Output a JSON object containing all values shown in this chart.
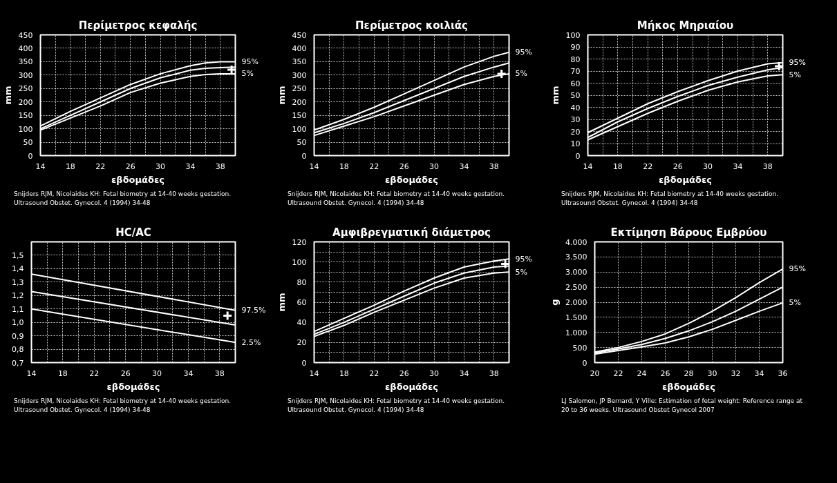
{
  "chart_data": [
    {
      "type": "line",
      "title": "Περίμετρος κεφαλής",
      "xlabel": "εβδομάδες",
      "ylabel": "mm",
      "xlim": [
        14,
        40
      ],
      "ylim": [
        0,
        450
      ],
      "grid": true,
      "xticks": [
        14,
        {
          "value": 16,
          "label": null
        },
        18,
        {
          "value": 20,
          "label": null
        },
        22,
        {
          "value": 24,
          "label": null
        },
        26,
        {
          "value": 28,
          "label": null
        },
        30,
        {
          "value": 32,
          "label": null
        },
        34,
        {
          "value": 36,
          "label": null
        },
        38,
        {
          "value": 40,
          "label": null
        }
      ],
      "yticks": [
        0,
        50,
        100,
        150,
        200,
        250,
        300,
        350,
        400,
        450
      ],
      "series": [
        {
          "name": "95%",
          "color": "#ffffff",
          "x": [
            14,
            18,
            22,
            26,
            30,
            34,
            36,
            38,
            40
          ],
          "values": [
            110,
            165,
            215,
            265,
            305,
            335,
            345,
            350,
            350
          ]
        },
        {
          "color": "#ffffff",
          "x": [
            14,
            18,
            22,
            26,
            30,
            34,
            36,
            38,
            40
          ],
          "values": [
            100,
            150,
            200,
            250,
            290,
            318,
            325,
            328,
            330
          ]
        },
        {
          "name": "5%",
          "color": "#ffffff",
          "x": [
            14,
            18,
            22,
            26,
            30,
            34,
            36,
            38,
            40
          ],
          "values": [
            95,
            140,
            185,
            235,
            270,
            295,
            302,
            305,
            305
          ]
        },
        {
          "type": "scatter",
          "marker": "cross",
          "color": "#ffffff",
          "x": [
            39.5
          ],
          "values": [
            320
          ]
        }
      ],
      "annotations": [
        "Snijders RJM, Nicolaides KH: Fetal biometry at 14-40 weeks gestation. Ultrasound Obstet. Gynecol. 4 (1994) 34-48"
      ]
    },
    {
      "type": "line",
      "title": "Περίμετρος κοιλιάς",
      "xlabel": "εβδομάδες",
      "ylabel": "mm",
      "xlim": [
        14,
        40
      ],
      "ylim": [
        0,
        450
      ],
      "grid": true,
      "xticks": [
        14,
        {
          "value": 16,
          "label": null
        },
        18,
        {
          "value": 20,
          "label": null
        },
        22,
        {
          "value": 24,
          "label": null
        },
        26,
        {
          "value": 28,
          "label": null
        },
        30,
        {
          "value": 32,
          "label": null
        },
        34,
        {
          "value": 36,
          "label": null
        },
        38,
        {
          "value": 40,
          "label": null
        }
      ],
      "yticks": [
        0,
        50,
        100,
        150,
        200,
        250,
        300,
        350,
        400,
        450
      ],
      "series": [
        {
          "name": "95%",
          "color": "#ffffff",
          "x": [
            14,
            18,
            22,
            26,
            30,
            34,
            38,
            40
          ],
          "values": [
            95,
            135,
            180,
            230,
            280,
            330,
            370,
            385
          ]
        },
        {
          "color": "#ffffff",
          "x": [
            14,
            18,
            22,
            26,
            30,
            34,
            38,
            40
          ],
          "values": [
            85,
            120,
            160,
            205,
            250,
            295,
            330,
            345
          ]
        },
        {
          "name": "5%",
          "color": "#ffffff",
          "x": [
            14,
            18,
            22,
            26,
            30,
            34,
            38,
            40
          ],
          "values": [
            75,
            110,
            145,
            185,
            225,
            265,
            295,
            305
          ]
        },
        {
          "type": "scatter",
          "marker": "cross",
          "color": "#ffffff",
          "x": [
            39
          ],
          "values": [
            305
          ]
        }
      ],
      "annotations": [
        "Snijders RJM, Nicolaides KH: Fetal biometry at 14-40 weeks gestation. Ultrasound Obstet. Gynecol. 4 (1994) 34-48"
      ]
    },
    {
      "type": "line",
      "title": "Μήκος Μηριαίου",
      "xlabel": "εβδομάδες",
      "ylabel": "mm",
      "xlim": [
        14,
        40
      ],
      "ylim": [
        0,
        100
      ],
      "grid": true,
      "xticks": [
        14,
        {
          "value": 16,
          "label": null
        },
        18,
        {
          "value": 20,
          "label": null
        },
        22,
        {
          "value": 24,
          "label": null
        },
        26,
        {
          "value": 28,
          "label": null
        },
        30,
        {
          "value": 32,
          "label": null
        },
        34,
        {
          "value": 36,
          "label": null
        },
        38,
        {
          "value": 40,
          "label": null
        }
      ],
      "yticks": [
        0,
        10,
        20,
        30,
        40,
        50,
        60,
        70,
        80,
        90,
        100
      ],
      "series": [
        {
          "name": "95%",
          "color": "#ffffff",
          "x": [
            14,
            18,
            22,
            26,
            30,
            34,
            38,
            40
          ],
          "values": [
            19,
            31,
            43,
            53,
            62,
            70,
            76,
            77
          ]
        },
        {
          "color": "#ffffff",
          "x": [
            14,
            18,
            22,
            26,
            30,
            34,
            38,
            40
          ],
          "values": [
            15,
            28,
            39,
            49,
            58,
            65,
            71,
            73
          ]
        },
        {
          "name": "5%",
          "color": "#ffffff",
          "x": [
            14,
            18,
            22,
            26,
            30,
            34,
            38,
            40
          ],
          "values": [
            13,
            24,
            35,
            45,
            54,
            61,
            66,
            67
          ]
        },
        {
          "type": "scatter",
          "marker": "cross",
          "color": "#ffffff",
          "x": [
            39.5
          ],
          "values": [
            74
          ]
        }
      ],
      "annotations": [
        "Snijders RJM, Nicolaides KH: Fetal biometry at 14-40 weeks gestation. Ultrasound Obstet. Gynecol. 4 (1994) 34-48"
      ]
    },
    {
      "type": "line",
      "title": "HC/AC",
      "xlabel": "εβδομάδες",
      "xlim": [
        14,
        40
      ],
      "ylim": [
        0.7,
        1.6
      ],
      "grid": true,
      "xticks": [
        14,
        {
          "value": 16,
          "label": null
        },
        18,
        {
          "value": 20,
          "label": null
        },
        22,
        {
          "value": 24,
          "label": null
        },
        26,
        {
          "value": 28,
          "label": null
        },
        30,
        {
          "value": 32,
          "label": null
        },
        34,
        {
          "value": 36,
          "label": null
        },
        38,
        {
          "value": 40,
          "label": null
        }
      ],
      "yticks": [
        {
          "value": 0.7,
          "label": "0,7"
        },
        {
          "value": 0.8,
          "label": "0,8"
        },
        {
          "value": 0.9,
          "label": "0,9"
        },
        {
          "value": 1.0,
          "label": "1,0"
        },
        {
          "value": 1.1,
          "label": "1,1"
        },
        {
          "value": 1.2,
          "label": "1,2"
        },
        {
          "value": 1.3,
          "label": "1,3"
        },
        {
          "value": 1.4,
          "label": "1,4"
        },
        {
          "value": 1.5,
          "label": "1,5"
        },
        {
          "value": 1.6,
          "label": null
        }
      ],
      "series": [
        {
          "name": "97.5%",
          "color": "#ffffff",
          "x": [
            14,
            40
          ],
          "values": [
            1.36,
            1.09
          ]
        },
        {
          "color": "#ffffff",
          "x": [
            14,
            40
          ],
          "values": [
            1.23,
            0.98
          ]
        },
        {
          "name": "2.5%",
          "color": "#ffffff",
          "x": [
            14,
            40
          ],
          "values": [
            1.1,
            0.85
          ]
        },
        {
          "type": "scatter",
          "marker": "cross",
          "color": "#ffffff",
          "x": [
            39
          ],
          "values": [
            1.05
          ]
        }
      ],
      "annotations": [
        "Snijders RJM, Nicolaides KH: Fetal biometry at 14-40 weeks gestation. Ultrasound Obstet. Gynecol. 4 (1994) 34-48"
      ]
    },
    {
      "type": "line",
      "title": "Αμφιβρεγματική διάμετρος",
      "xlabel": "εβδομάδες",
      "ylabel": "mm",
      "xlim": [
        14,
        40
      ],
      "ylim": [
        0,
        120
      ],
      "grid": true,
      "xticks": [
        14,
        {
          "value": 16,
          "label": null
        },
        18,
        {
          "value": 20,
          "label": null
        },
        22,
        {
          "value": 24,
          "label": null
        },
        26,
        {
          "value": 28,
          "label": null
        },
        30,
        {
          "value": 32,
          "label": null
        },
        34,
        {
          "value": 36,
          "label": null
        },
        38,
        {
          "value": 40,
          "label": null
        }
      ],
      "yticks": [
        0,
        {
          "value": 10,
          "label": null
        },
        20,
        {
          "value": 30,
          "label": null
        },
        40,
        {
          "value": 50,
          "label": null
        },
        60,
        {
          "value": 70,
          "label": null
        },
        80,
        {
          "value": 90,
          "label": null
        },
        100,
        {
          "value": 110,
          "label": null
        },
        120
      ],
      "series": [
        {
          "name": "95%",
          "color": "#ffffff",
          "x": [
            14,
            18,
            22,
            26,
            30,
            34,
            38,
            40
          ],
          "values": [
            31,
            44,
            57,
            71,
            84,
            95,
            101,
            103
          ]
        },
        {
          "color": "#ffffff",
          "x": [
            14,
            18,
            22,
            26,
            30,
            34,
            38,
            40
          ],
          "values": [
            28,
            40,
            53,
            66,
            79,
            89,
            95,
            96
          ]
        },
        {
          "name": "5%",
          "color": "#ffffff",
          "x": [
            14,
            18,
            22,
            26,
            30,
            34,
            38,
            40
          ],
          "values": [
            26,
            37,
            50,
            62,
            74,
            84,
            89,
            90
          ]
        },
        {
          "type": "scatter",
          "marker": "cross",
          "color": "#ffffff",
          "x": [
            39.5
          ],
          "values": [
            98
          ]
        }
      ],
      "annotations": [
        "Snijders RJM, Nicolaides KH: Fetal biometry at 14-40 weeks gestation. Ultrasound Obstet. Gynecol. 4 (1994) 34-48"
      ]
    },
    {
      "type": "line",
      "title": "Εκτίμηση Βάρους Εμβρύου",
      "xlabel": "εβδομάδες",
      "ylabel": "g",
      "xlim": [
        20,
        36
      ],
      "ylim": [
        0,
        4000
      ],
      "grid": true,
      "xticks": [
        20,
        22,
        24,
        26,
        28,
        30,
        32,
        34,
        36
      ],
      "yticks": [
        0,
        500,
        {
          "value": 1000,
          "label": "1.000"
        },
        {
          "value": 1500,
          "label": "1.500"
        },
        {
          "value": 2000,
          "label": "2.000"
        },
        {
          "value": 2500,
          "label": "2.500"
        },
        {
          "value": 3000,
          "label": "3.000"
        },
        {
          "value": 3500,
          "label": "3.500"
        },
        {
          "value": 4000,
          "label": "4.000"
        }
      ],
      "series": [
        {
          "name": "95%",
          "color": "#ffffff",
          "x": [
            20,
            22,
            24,
            26,
            28,
            30,
            32,
            34,
            36
          ],
          "values": [
            350,
            500,
            700,
            950,
            1300,
            1700,
            2150,
            2650,
            3100
          ]
        },
        {
          "color": "#ffffff",
          "x": [
            20,
            22,
            24,
            26,
            28,
            30,
            32,
            34,
            36
          ],
          "values": [
            320,
            450,
            600,
            800,
            1050,
            1350,
            1700,
            2100,
            2500
          ]
        },
        {
          "name": "5%",
          "color": "#ffffff",
          "x": [
            20,
            22,
            24,
            26,
            28,
            30,
            32,
            34,
            36
          ],
          "values": [
            280,
            400,
            520,
            650,
            850,
            1100,
            1400,
            1700,
            1980
          ]
        }
      ],
      "annotations": [
        "LJ Salomon, JP Bernard, Y Ville: Estimation of fetal weight: Reference range at 20 to 36 weeks. Ultrasound Obstet Gynecol 2007"
      ]
    }
  ]
}
